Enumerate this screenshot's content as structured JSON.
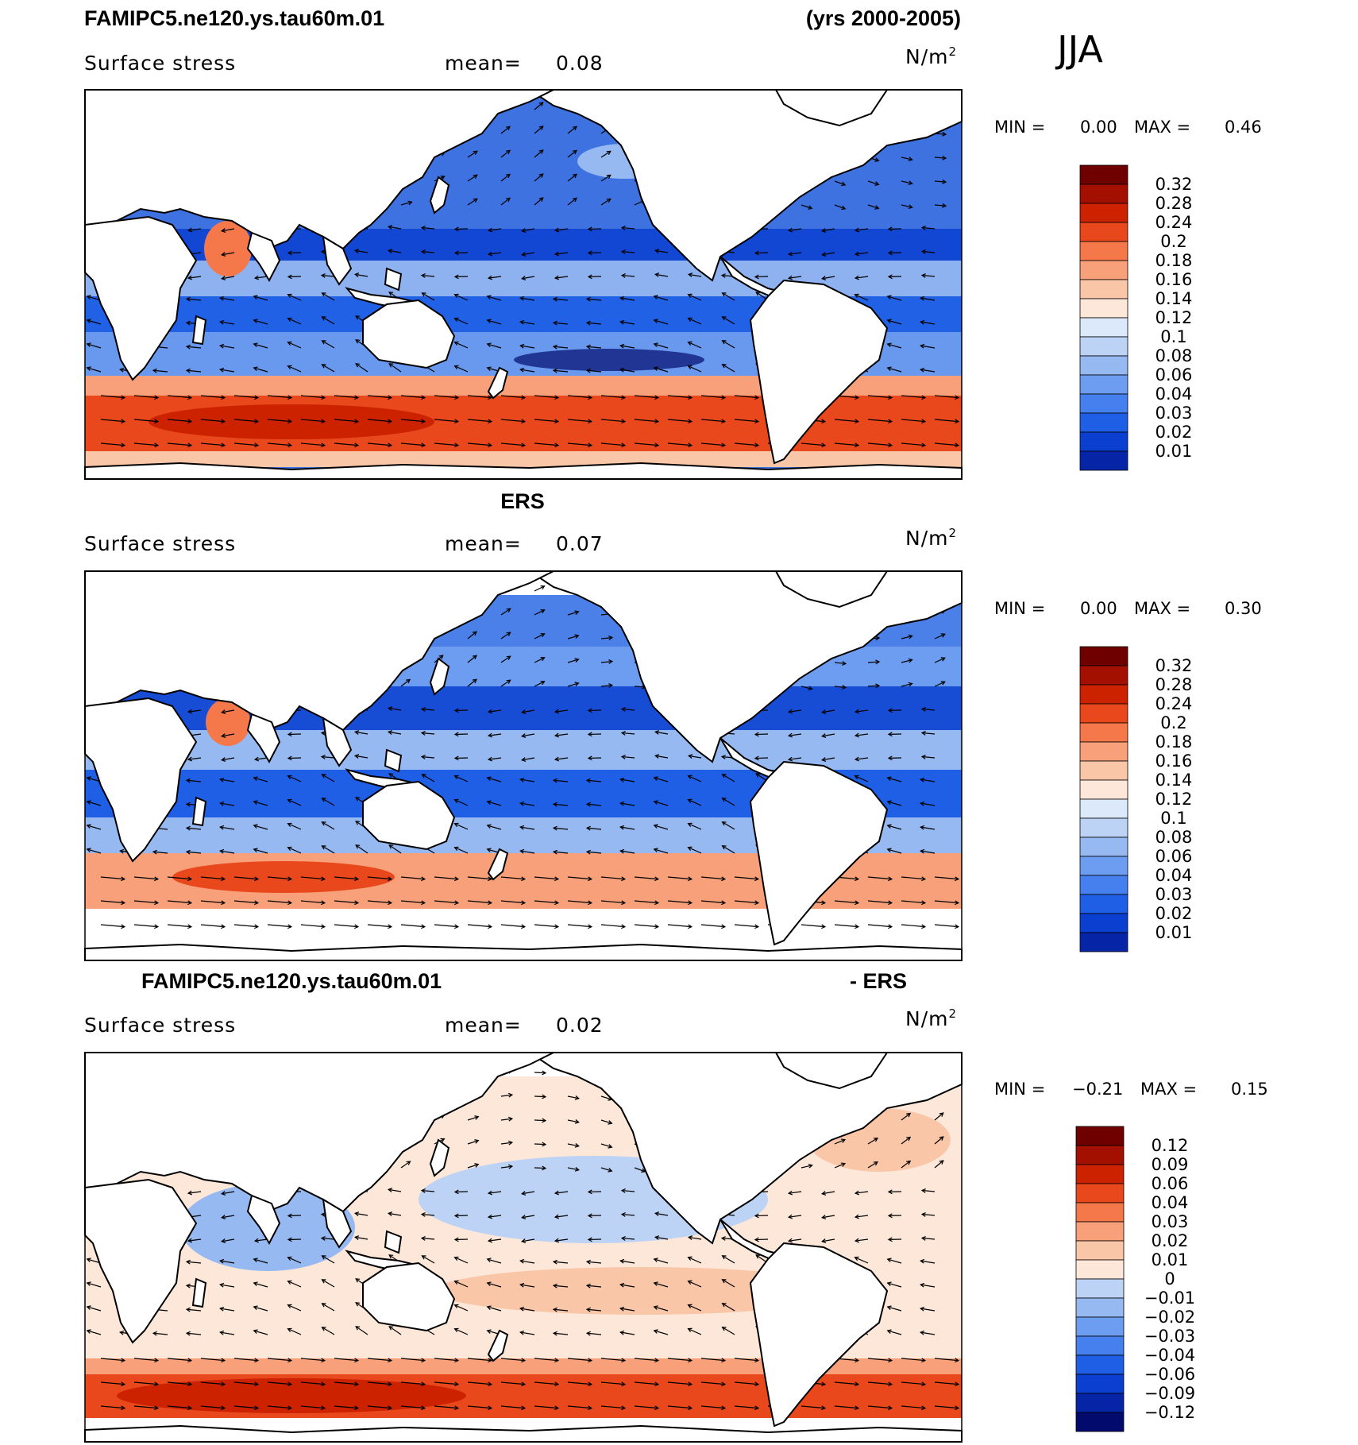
{
  "header": {
    "case_name": "FAMIPC5.ne120.ys.tau60m.01",
    "years": "(yrs 2000-2005)",
    "season": "JJA"
  },
  "colors": {
    "reds": [
      "#6e0000",
      "#a31000",
      "#cc2200",
      "#e8481b",
      "#f4784a",
      "#f7a07a",
      "#fac6a8",
      "#fde7d8"
    ],
    "blues": [
      "#dbe9fa",
      "#bdd3f5",
      "#97b9f1",
      "#6d9df0",
      "#4680ee",
      "#1e5fe6",
      "#0a3fd0",
      "#0625a6",
      "#020a6e"
    ],
    "ocean_fill_top": "#3d72e0",
    "ocean_fill_mid": "#4b80e8",
    "ocean_fill_diff": "#fde7d8"
  },
  "chart_data": [
    {
      "type": "heatmap",
      "panel_title": "FAMIPC5.ne120.ys.tau60m.01",
      "variable": "Surface stress",
      "mean_label": "mean=",
      "mean_value": "0.08",
      "units": "N/m",
      "units_sup": "2",
      "min_label": "MIN =",
      "min_value": "0.00",
      "max_label": "MAX =",
      "max_value": "0.46",
      "colorbar": [
        "0.32",
        "0.28",
        "0.24",
        "0.2",
        "0.18",
        "0.16",
        "0.14",
        "0.12",
        "0.1",
        "0.08",
        "0.06",
        "0.04",
        "0.03",
        "0.02",
        "0.01"
      ]
    },
    {
      "type": "heatmap",
      "panel_title": "ERS",
      "variable": "Surface stress",
      "mean_label": "mean=",
      "mean_value": "0.07",
      "units": "N/m",
      "units_sup": "2",
      "min_label": "MIN =",
      "min_value": "0.00",
      "max_label": "MAX =",
      "max_value": "0.30",
      "colorbar": [
        "0.32",
        "0.28",
        "0.24",
        "0.2",
        "0.18",
        "0.16",
        "0.14",
        "0.12",
        "0.1",
        "0.08",
        "0.06",
        "0.04",
        "0.03",
        "0.02",
        "0.01"
      ]
    },
    {
      "type": "heatmap",
      "panel_title": "FAMIPC5.ne120.ys.tau60m.01",
      "panel_title_suffix": "- ERS",
      "variable": "Surface stress",
      "mean_label": "mean=",
      "mean_value": "0.02",
      "units": "N/m",
      "units_sup": "2",
      "min_label": "MIN =",
      "min_value": "−0.21",
      "max_label": "MAX =",
      "max_value": "0.15",
      "colorbar": [
        "0.12",
        "0.09",
        "0.06",
        "0.04",
        "0.03",
        "0.02",
        "0.01",
        "0",
        "−0.01",
        "−0.02",
        "−0.03",
        "−0.04",
        "−0.06",
        "−0.09",
        "−0.12"
      ]
    }
  ]
}
